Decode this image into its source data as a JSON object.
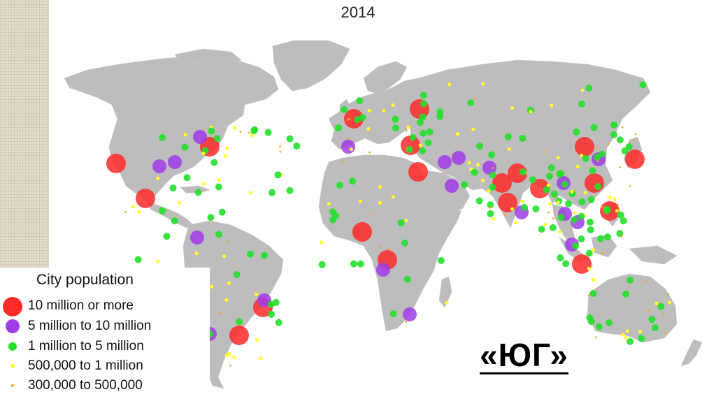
{
  "header": {
    "year": "2014"
  },
  "legend": {
    "title": "City population",
    "items": [
      {
        "label": "10 million or more",
        "color": "#ff2a2a",
        "size": "large"
      },
      {
        "label": "5 million to 10 million",
        "color": "#a03ce8",
        "size": "medium"
      },
      {
        "label": "1 million to 5 million",
        "color": "#22e02a",
        "size": "small"
      },
      {
        "label": "500,000 to 1 million",
        "color": "#ffff22",
        "size": "tiny"
      },
      {
        "label": "300,000 to 500,000",
        "color": "#ffa020",
        "size": "dot"
      }
    ]
  },
  "caption": "«ЮГ»",
  "colors": {
    "land": "#bdbdbd",
    "mega": "#ff2a2a",
    "large": "#a03ce8",
    "medium": "#22e02a",
    "small": "#ffff22",
    "tiny": "#ffa020"
  }
}
